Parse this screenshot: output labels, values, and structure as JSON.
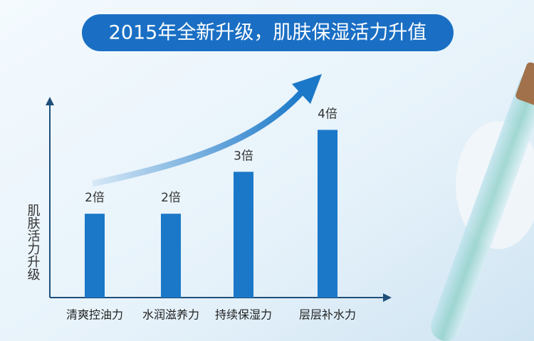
{
  "chart_data": {
    "type": "bar",
    "title": "2015年全新升级，肌肤保湿活力升值",
    "ylabel": "肌肤活力升级",
    "categories": [
      "清爽控油力",
      "水润滋养力",
      "持续保湿力",
      "层层补水力"
    ],
    "values": [
      2,
      2,
      3,
      4
    ],
    "value_labels": [
      "2倍",
      "2倍",
      "3倍",
      "4倍"
    ],
    "color": "#1b78c8",
    "ylim": [
      0,
      4.5
    ]
  }
}
